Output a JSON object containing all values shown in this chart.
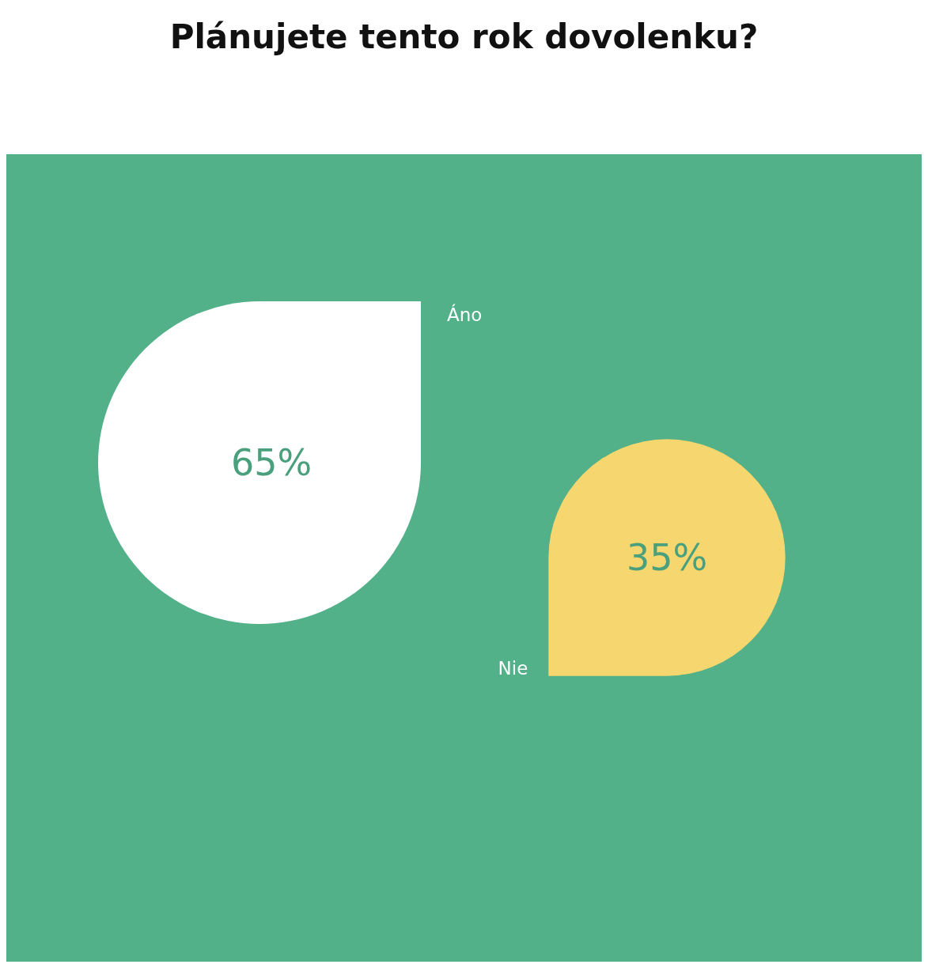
{
  "chart_data": {
    "type": "other",
    "title": "Plánujete tento rok dovolenku?",
    "categories": [
      "Áno",
      "Nie"
    ],
    "values": [
      65,
      35
    ],
    "value_labels": [
      "65%",
      "35%"
    ],
    "colors": [
      "#ffffff",
      "#f5d66f"
    ]
  }
}
